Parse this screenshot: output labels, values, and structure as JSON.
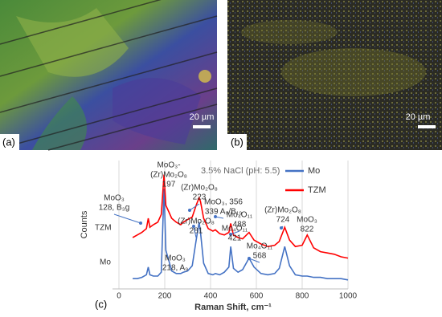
{
  "panels": [
    {
      "label": "(a)",
      "scale_bar": "20 µm"
    },
    {
      "label": "(b)",
      "scale_bar": "20 µm"
    }
  ],
  "chart_data": {
    "type": "line",
    "panel_label": "(c)",
    "xlabel": "Raman Shift, cm⁻¹",
    "ylabel": "Counts",
    "subtitle": "3.5% NaCl (pH: 5.5)",
    "xlim": [
      0,
      1000
    ],
    "xticks": [
      0,
      200,
      400,
      600,
      800,
      1000
    ],
    "ylim": [
      0,
      100
    ],
    "grid": true,
    "legend": "upper right",
    "x": [
      60,
      80,
      100,
      120,
      128,
      135,
      150,
      170,
      185,
      197,
      205,
      218,
      230,
      250,
      270,
      281,
      300,
      320,
      339,
      350,
      356,
      370,
      390,
      410,
      421,
      440,
      460,
      480,
      488,
      500,
      520,
      540,
      568,
      590,
      620,
      650,
      680,
      700,
      724,
      745,
      770,
      800,
      822,
      850,
      880,
      910,
      940,
      970,
      1000
    ],
    "series": [
      {
        "name": "Mo",
        "color": "#4472c4",
        "values": [
          8,
          8,
          9,
          11,
          17,
          11,
          10,
          10,
          13,
          78,
          30,
          22,
          14,
          12,
          12,
          13,
          14,
          18,
          40,
          52,
          44,
          20,
          12,
          11,
          12,
          11,
          13,
          17,
          33,
          16,
          13,
          15,
          24,
          17,
          12,
          11,
          12,
          16,
          33,
          18,
          11,
          10,
          10,
          9,
          9,
          8,
          8,
          8,
          7
        ]
      },
      {
        "name": "TZM",
        "color": "#ff0000",
        "values": [
          40,
          42,
          44,
          47,
          55,
          48,
          50,
          52,
          58,
          89,
          65,
          60,
          55,
          52,
          50,
          52,
          54,
          56,
          66,
          71,
          68,
          55,
          47,
          45,
          46,
          43,
          42,
          44,
          51,
          42,
          40,
          39,
          44,
          38,
          35,
          33,
          34,
          37,
          48,
          38,
          33,
          34,
          42,
          32,
          29,
          28,
          27,
          25,
          24
        ]
      }
    ],
    "annotations": [
      [
        "MoO₃",
        "128, B₃g"
      ],
      [
        "MoO₃-",
        "(Zr)Mo₂O₈",
        "197"
      ],
      [
        "(Zr)Mo₂O₈",
        "223"
      ],
      [
        "(Zr)Mo₂O₈",
        "281"
      ],
      [
        "MoO₃, 356",
        "339 A₉/B₁₉"
      ],
      [
        "Mo₄O₁₁",
        "488"
      ],
      [
        "Mo₄O₁₁",
        "421"
      ],
      [
        "Mo₄O₁₁",
        "568"
      ],
      [
        "(Zr)Mo₂O₈",
        "724"
      ],
      [
        "MoO₃",
        "822"
      ],
      [
        "MoO₃",
        "218, A₉"
      ]
    ]
  }
}
